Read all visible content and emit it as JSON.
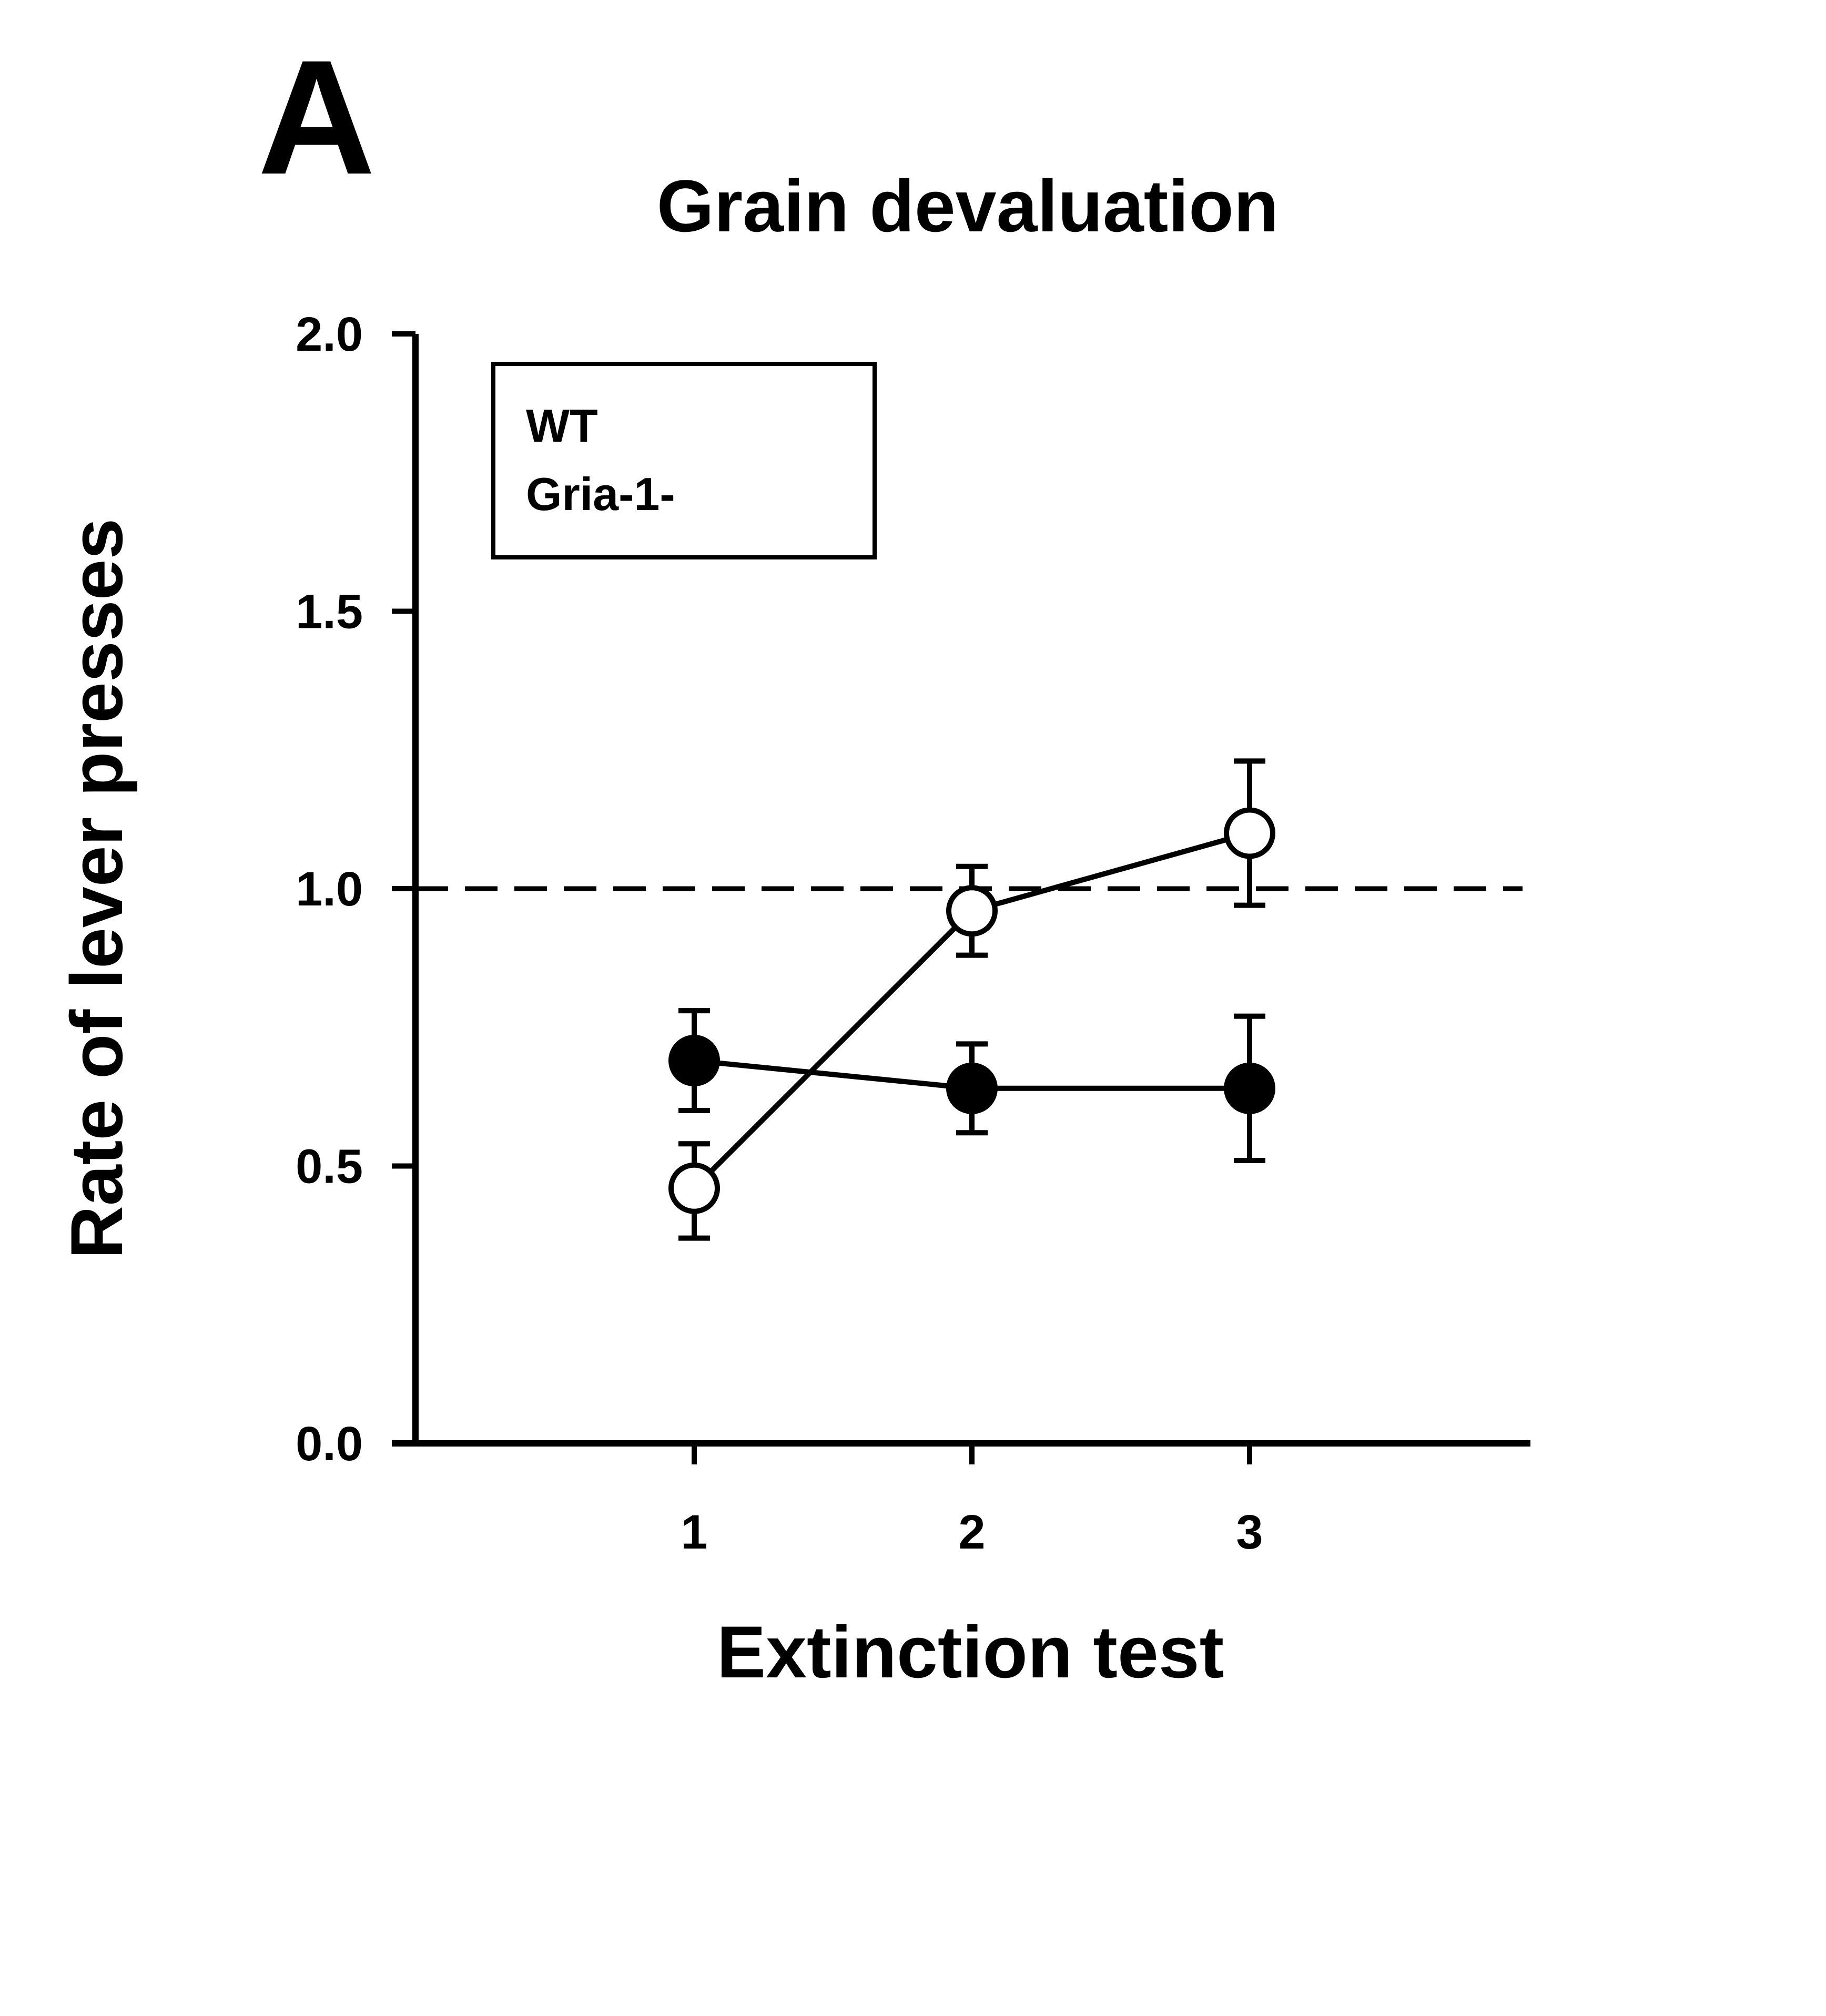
{
  "panel_label": "A",
  "chart_data": {
    "type": "line",
    "title": "Grain devaluation",
    "xlabel": "Extinction test",
    "ylabel": "Rate of lever presses",
    "x": [
      1,
      2,
      3
    ],
    "xticks": [
      "1",
      "2",
      "3"
    ],
    "ylim": [
      0.0,
      2.0
    ],
    "yticks": [
      "0.0",
      "0.5",
      "1.0",
      "1.5",
      "2.0"
    ],
    "reference_line": {
      "y": 1.0,
      "style": "dashed"
    },
    "grid": false,
    "legend_position": "top-left",
    "legend_entries": [
      "WT",
      "Gria-1-"
    ],
    "series": [
      {
        "marker": "filled-circle",
        "color": "#000000",
        "values": [
          0.69,
          0.64,
          0.64
        ],
        "error_upper": [
          0.78,
          0.72,
          0.77
        ],
        "error_lower": [
          0.6,
          0.56,
          0.51
        ]
      },
      {
        "marker": "open-circle",
        "color": "#000000",
        "values": [
          0.46,
          0.96,
          1.1
        ],
        "error_upper": [
          0.54,
          1.04,
          1.23
        ],
        "error_lower": [
          0.37,
          0.88,
          0.97
        ]
      }
    ]
  }
}
